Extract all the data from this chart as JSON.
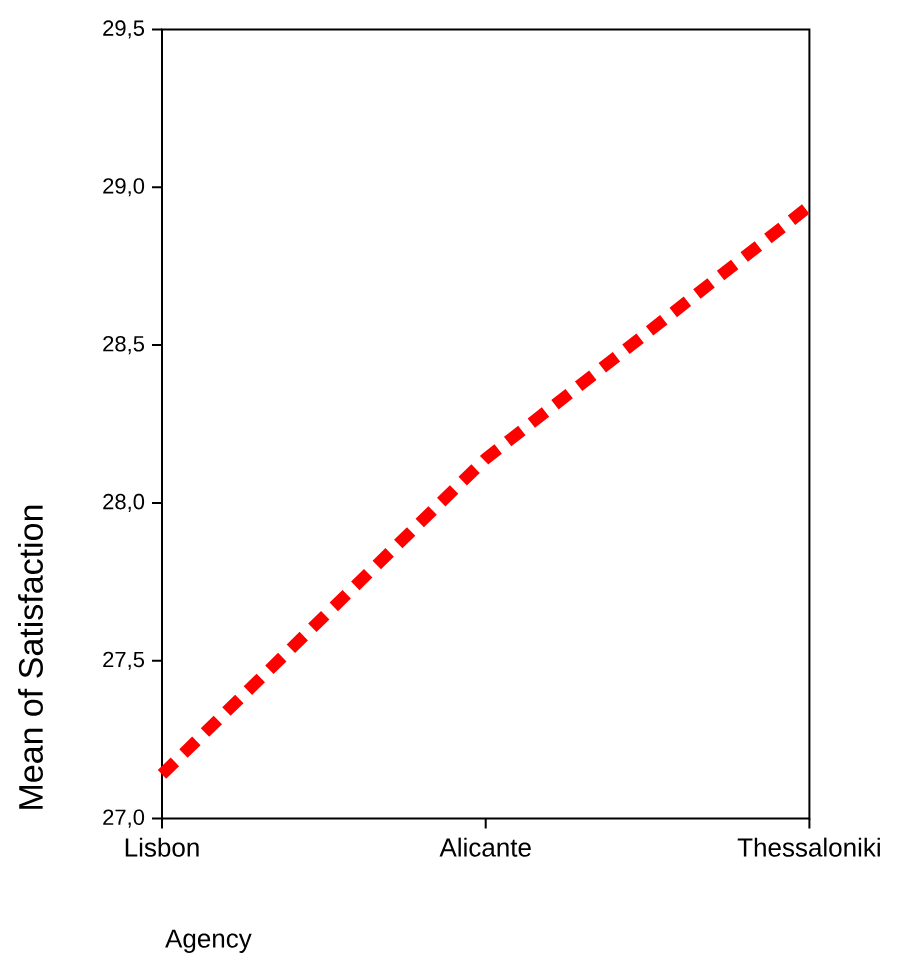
{
  "chart_data": {
    "type": "line",
    "xlabel": "Agency",
    "ylabel": "Mean of Satisfaction",
    "categories": [
      "Lisbon",
      "Alicante",
      "Thessaloniki"
    ],
    "series": [
      {
        "color": "#ff0000",
        "values": [
          27.14,
          28.14,
          28.94
        ]
      }
    ],
    "ylim": [
      27.0,
      29.5
    ],
    "yticks": [
      {
        "value": 27.0,
        "label": "27,0"
      },
      {
        "value": 27.5,
        "label": "27,5"
      },
      {
        "value": 28.0,
        "label": "28,0"
      },
      {
        "value": 28.5,
        "label": "28,5"
      },
      {
        "value": 29.0,
        "label": "29,0"
      },
      {
        "value": 29.5,
        "label": "29,5"
      }
    ],
    "marker": "none",
    "line_style": "dashed"
  }
}
